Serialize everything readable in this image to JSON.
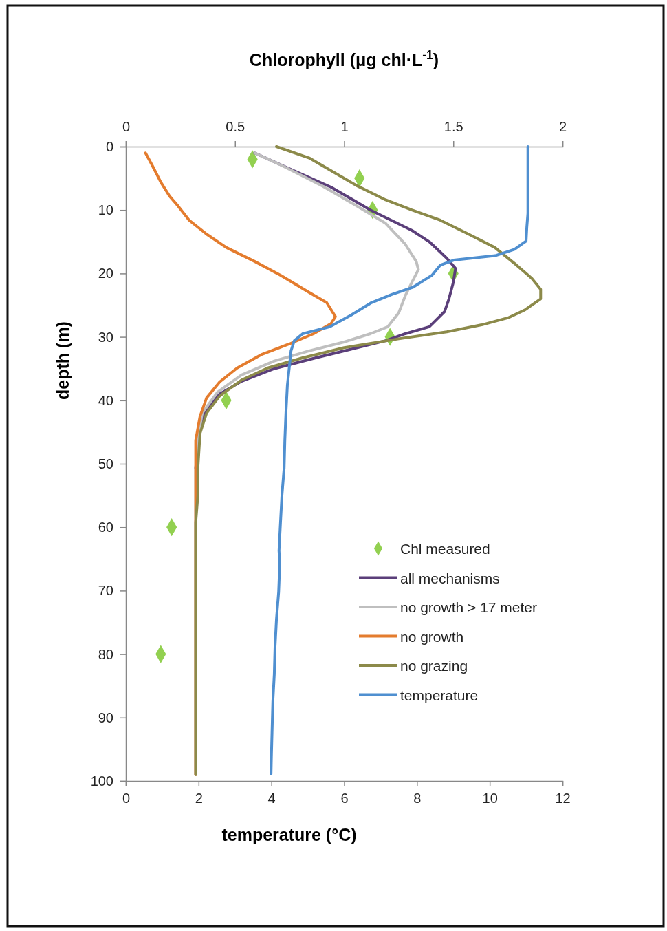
{
  "chart_data": {
    "type": "line",
    "x2label": "Chlorophyll (μg chl·L$^{-1}$)",
    "xlabel": "temperature (°C)",
    "ylabel": "depth (m)",
    "xlim": [
      0,
      12
    ],
    "xticks": [
      0,
      2,
      4,
      6,
      8,
      10,
      12
    ],
    "x2lim": [
      0,
      2
    ],
    "x2ticks": [
      0,
      0.5,
      1,
      1.5,
      2
    ],
    "ylim": [
      100,
      0
    ],
    "yticks": [
      0,
      10,
      20,
      30,
      40,
      50,
      60,
      70,
      80,
      90,
      100
    ],
    "grid": false,
    "legend": "right",
    "line_style": "solid",
    "series": [
      {
        "name": "Chl measured",
        "type": "scatter",
        "marker": "diamond",
        "axis": "x2",
        "color": "#92d050",
        "x": [
          0.58,
          1.07,
          1.13,
          1.5,
          1.21,
          0.46,
          0.21,
          0.16
        ],
        "values": [
          2,
          5,
          10,
          20,
          30,
          40,
          60,
          80
        ]
      },
      {
        "name": "all mechanisms",
        "axis": "x2",
        "color": "#5b3f7a",
        "x": [
          0.59,
          0.75,
          0.94,
          1.12,
          1.31,
          1.39,
          1.47,
          1.51,
          1.5,
          1.48,
          1.46,
          1.39,
          1.28,
          1.19,
          1.06,
          0.87,
          0.68,
          0.53,
          0.43,
          0.37,
          0.34,
          0.33,
          0.32
        ],
        "values": [
          1,
          3.5,
          6.4,
          10,
          13.2,
          15,
          17.6,
          19.2,
          21.4,
          24,
          26,
          28.4,
          29.5,
          30.6,
          31.7,
          33.3,
          35,
          37,
          39,
          41.4,
          44,
          47.4,
          50.7
        ]
      },
      {
        "name": "no growth > 17 meter",
        "axis": "x2",
        "color": "#bfbfbf",
        "x": [
          0.59,
          0.71,
          0.9,
          1.06,
          1.19,
          1.28,
          1.33,
          1.34,
          1.31,
          1.28,
          1.25,
          1.2,
          1.12,
          1.0,
          0.84,
          0.68,
          0.53,
          0.42,
          0.35,
          0.33,
          0.32,
          0.32,
          0.32
        ],
        "values": [
          1,
          2.9,
          6.2,
          9.4,
          12.1,
          15.4,
          18.1,
          19.4,
          21.4,
          23.5,
          26.2,
          28.4,
          29.5,
          30.8,
          32.2,
          33.8,
          36,
          38.7,
          42,
          46.3,
          50.7,
          55,
          99
        ]
      },
      {
        "name": "no growth",
        "axis": "x2",
        "color": "#e47c2e",
        "x": [
          0.09,
          0.12,
          0.16,
          0.2,
          0.24,
          0.29,
          0.37,
          0.46,
          0.59,
          0.71,
          0.84,
          0.92,
          0.96,
          0.94,
          0.86,
          0.75,
          0.62,
          0.51,
          0.43,
          0.37,
          0.34,
          0.32,
          0.32,
          0.32
        ],
        "values": [
          1,
          2.9,
          5.6,
          7.8,
          9.4,
          11.6,
          13.8,
          15.9,
          18.1,
          20.3,
          23,
          24.6,
          26.8,
          27.9,
          29.5,
          31.1,
          32.8,
          34.9,
          37.1,
          39.6,
          42.5,
          46.3,
          50.7,
          99
        ]
      },
      {
        "name": "no grazing",
        "axis": "x2",
        "color": "#8c8a4a",
        "x": [
          0.69,
          0.84,
          1.06,
          1.19,
          1.31,
          1.44,
          1.57,
          1.69,
          1.79,
          1.86,
          1.9,
          1.9,
          1.83,
          1.75,
          1.63,
          1.47,
          1.25,
          1.0,
          0.81,
          0.65,
          0.53,
          0.43,
          0.37,
          0.34,
          0.33,
          0.33,
          0.32,
          0.32
        ],
        "values": [
          0,
          1.8,
          6.2,
          8.4,
          10,
          11.6,
          13.8,
          15.9,
          18.7,
          20.8,
          22.5,
          24,
          25.7,
          27,
          28.1,
          29.2,
          30.3,
          31.7,
          33.3,
          34.9,
          36.8,
          39.3,
          42,
          45.2,
          50.7,
          55,
          59.3,
          99
        ]
      },
      {
        "name": "temperature",
        "color": "#4f8fd0",
        "x": [
          11.05,
          11.05,
          11.02,
          11.0,
          10.68,
          10.15,
          9.01,
          8.64,
          8.41,
          7.88,
          7.31,
          6.75,
          6.18,
          5.61,
          4.86,
          4.63,
          4.54,
          4.5,
          4.44,
          4.4,
          4.37,
          4.35,
          4.29,
          4.25,
          4.21,
          4.23,
          4.2,
          4.14,
          4.1,
          4.08,
          4.04,
          4.02,
          4.0,
          3.99
        ],
        "values": [
          0,
          10.5,
          12.7,
          14.9,
          16.2,
          17.2,
          17.9,
          18.7,
          20.3,
          22.2,
          23.3,
          24.6,
          26.6,
          28.4,
          29.5,
          30.6,
          32.2,
          34.4,
          37.6,
          42,
          46.3,
          50.7,
          55,
          59.3,
          63.7,
          65.8,
          70.2,
          74.5,
          78.9,
          83.2,
          87.5,
          91.9,
          96.2,
          98.9
        ]
      }
    ]
  }
}
